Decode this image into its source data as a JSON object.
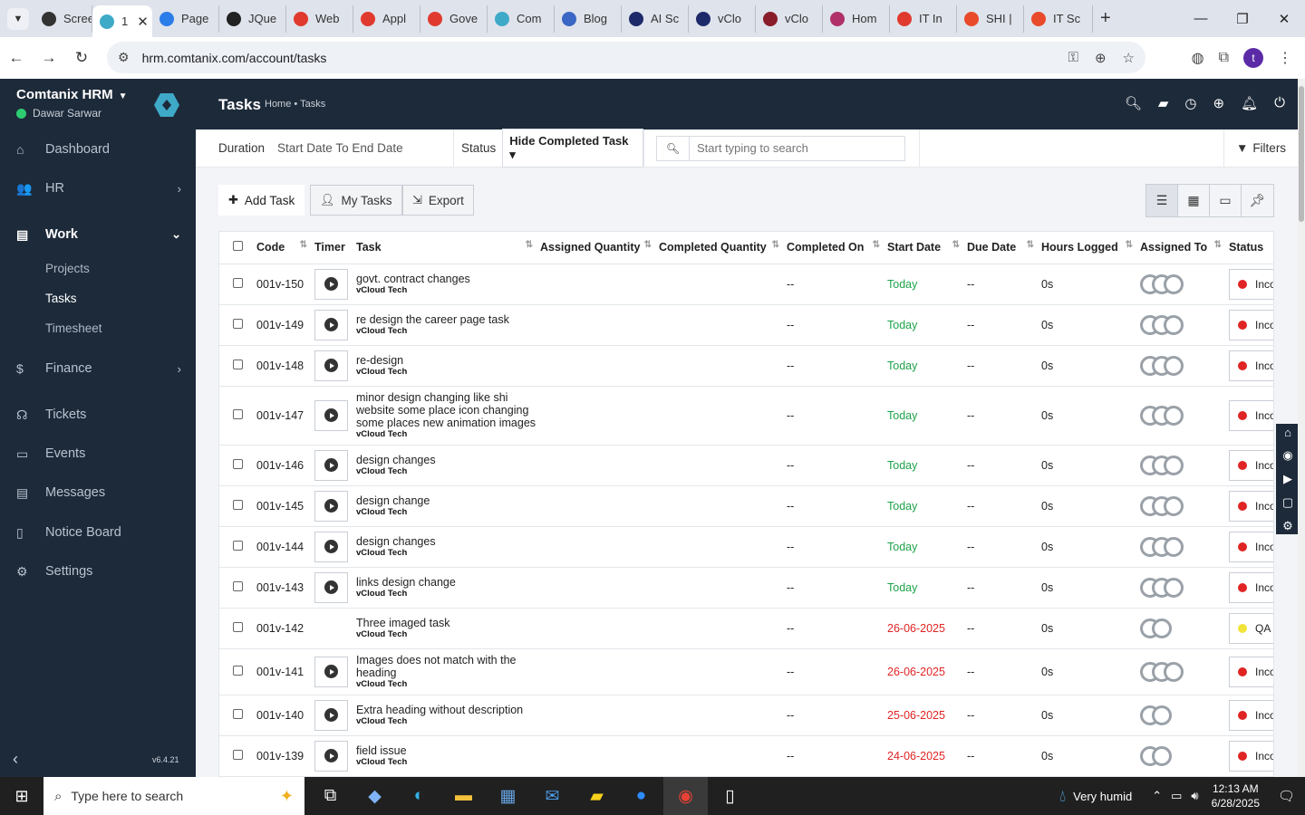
{
  "browser": {
    "tabs": [
      {
        "label": "Scree",
        "color": "#333333"
      },
      {
        "label": "1",
        "color": "#3fa9c8",
        "active": true
      },
      {
        "label": "Page",
        "color": "#2b7de9"
      },
      {
        "label": "JQue",
        "color": "#222222"
      },
      {
        "label": "Web",
        "color": "#e03a2f"
      },
      {
        "label": "Appl",
        "color": "#e03a2f"
      },
      {
        "label": "Gove",
        "color": "#e03a2f"
      },
      {
        "label": "Com",
        "color": "#3fa9c8"
      },
      {
        "label": "Blog",
        "color": "#3a66c5"
      },
      {
        "label": "AI Sc",
        "color": "#1d2a6a"
      },
      {
        "label": "vClo",
        "color": "#1d2a6a"
      },
      {
        "label": "vClo",
        "color": "#8a1d2a"
      },
      {
        "label": "Hom",
        "color": "#b0306a"
      },
      {
        "label": "IT In",
        "color": "#e03a2f"
      },
      {
        "label": "SHI |",
        "color": "#e84a2a"
      },
      {
        "label": "IT Sc",
        "color": "#e84a2a"
      }
    ],
    "url": "hrm.comtanix.com/account/tasks",
    "profile_initial": "t"
  },
  "sidebar": {
    "company": "Comtanix HRM",
    "user": "Dawar Sarwar",
    "items": [
      {
        "label": "Dashboard",
        "icon": "home-icon"
      },
      {
        "label": "HR",
        "icon": "users-icon"
      },
      {
        "label": "Work",
        "icon": "briefcase-icon"
      },
      {
        "label": "Finance",
        "icon": "dollar-icon"
      },
      {
        "label": "Tickets",
        "icon": "headset-icon"
      },
      {
        "label": "Events",
        "icon": "calendar-icon"
      },
      {
        "label": "Messages",
        "icon": "message-icon"
      },
      {
        "label": "Notice Board",
        "icon": "clipboard-icon"
      },
      {
        "label": "Settings",
        "icon": "gear-icon"
      }
    ],
    "work_sub": [
      "Projects",
      "Tasks",
      "Timesheet"
    ],
    "version": "v6.4.21"
  },
  "header": {
    "title": "Tasks",
    "breadcrumb": "Home • Tasks"
  },
  "filters": {
    "duration_label": "Duration",
    "duration_value": "Start Date To End Date",
    "status_label": "Status",
    "status_value": "Hide Completed Task",
    "search_placeholder": "Start typing to search",
    "filters_label": "Filters"
  },
  "actions": {
    "add": "Add Task",
    "my_tasks": "My Tasks",
    "export": "Export"
  },
  "table": {
    "columns": [
      "Code",
      "Timer",
      "Task",
      "Assigned Quantity",
      "Completed Quantity",
      "Completed On",
      "Start Date",
      "Due Date",
      "Hours Logged",
      "Assigned To",
      "Status"
    ],
    "rows": [
      {
        "code": "001v-150",
        "task": "govt. contract changes",
        "project": "vCloud Tech",
        "completed_on": "--",
        "start": "Today",
        "due": "--",
        "hours": "0s",
        "status": "Inco"
      },
      {
        "code": "001v-149",
        "task": "re design the career page task",
        "project": "vCloud Tech",
        "completed_on": "--",
        "start": "Today",
        "due": "--",
        "hours": "0s",
        "status": "Inco"
      },
      {
        "code": "001v-148",
        "task": "re-design",
        "project": "vCloud Tech",
        "completed_on": "--",
        "start": "Today",
        "due": "--",
        "hours": "0s",
        "status": "Inco"
      },
      {
        "code": "001v-147",
        "task": "minor design changing like shi website some place icon changing some places new animation images",
        "project": "vCloud Tech",
        "completed_on": "--",
        "start": "Today",
        "due": "--",
        "hours": "0s",
        "status": "Inco"
      },
      {
        "code": "001v-146",
        "task": "design changes",
        "project": "vCloud Tech",
        "completed_on": "--",
        "start": "Today",
        "due": "--",
        "hours": "0s",
        "status": "Inco"
      },
      {
        "code": "001v-145",
        "task": "design change",
        "project": "vCloud Tech",
        "completed_on": "--",
        "start": "Today",
        "due": "--",
        "hours": "0s",
        "status": "Inco"
      },
      {
        "code": "001v-144",
        "task": "design changes",
        "project": "vCloud Tech",
        "completed_on": "--",
        "start": "Today",
        "due": "--",
        "hours": "0s",
        "status": "Inco"
      },
      {
        "code": "001v-143",
        "task": "links design change",
        "project": "vCloud Tech",
        "completed_on": "--",
        "start": "Today",
        "due": "--",
        "hours": "0s",
        "status": "Inco"
      },
      {
        "code": "001v-142",
        "task": "Three imaged task",
        "project": "vCloud Tech",
        "completed_on": "--",
        "start": "26-06-2025",
        "due": "--",
        "hours": "0s",
        "status": "QA"
      },
      {
        "code": "001v-141",
        "task": "Images does not match with the heading",
        "project": "vCloud Tech",
        "completed_on": "--",
        "start": "26-06-2025",
        "due": "--",
        "hours": "0s",
        "status": "Inco"
      },
      {
        "code": "001v-140",
        "task": "Extra heading without description",
        "project": "vCloud Tech",
        "completed_on": "--",
        "start": "25-06-2025",
        "due": "--",
        "hours": "0s",
        "status": "Inco"
      },
      {
        "code": "001v-139",
        "task": "field issue",
        "project": "vCloud Tech",
        "completed_on": "--",
        "start": "24-06-2025",
        "due": "--",
        "hours": "0s",
        "status": "Inco"
      }
    ]
  },
  "colors": {
    "sidebar_bg": "#1d2a3a",
    "today": "#1ea34a",
    "past_date": "#e02424",
    "status_incomplete": "#e02424",
    "status_qa": "#f1e33a"
  },
  "taskbar": {
    "search_placeholder": "Type here to search",
    "weather": "Very humid",
    "time": "12:13 AM",
    "date": "6/28/2025"
  }
}
